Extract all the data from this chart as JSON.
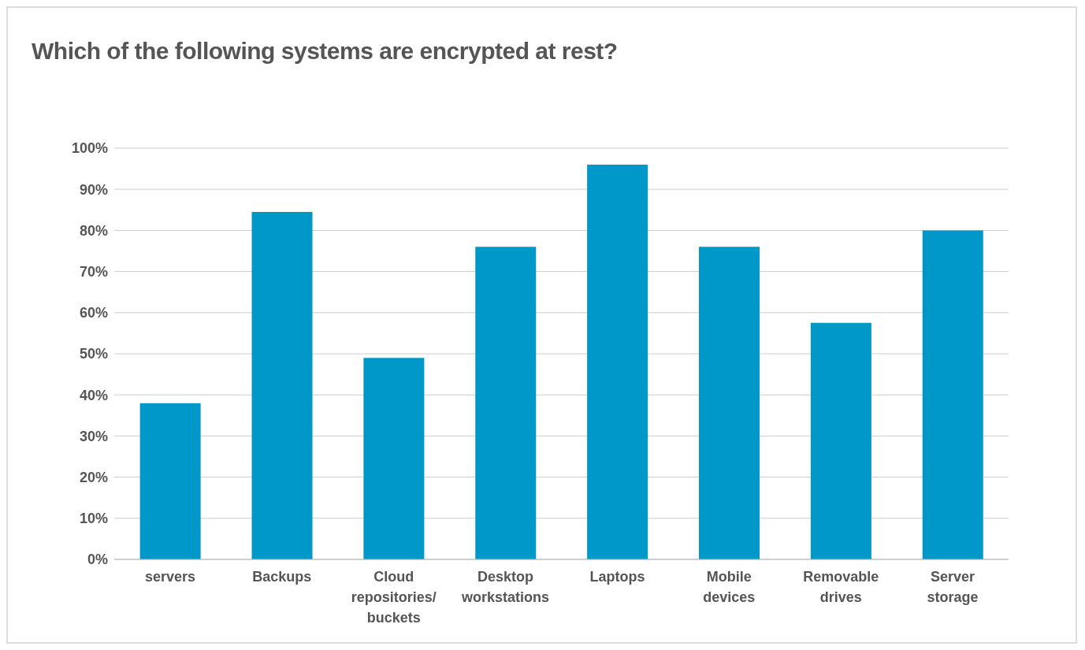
{
  "chart_data": {
    "type": "bar",
    "title": "Which of the following systems are encrypted at rest?",
    "categories": [
      "servers",
      "Backups",
      "Cloud repositories/buckets",
      "Desktop workstations",
      "Laptops",
      "Mobile devices",
      "Removable drives",
      "Server storage"
    ],
    "values": [
      38,
      84.5,
      49,
      76,
      96,
      76,
      57.5,
      80
    ],
    "color": "#0097c9",
    "ylim": [
      0,
      100
    ],
    "yticks": [
      {
        "value": 0,
        "label": "0%"
      },
      {
        "value": 10,
        "label": "10%"
      },
      {
        "value": 20,
        "label": "20%"
      },
      {
        "value": 30,
        "label": "30%"
      },
      {
        "value": 40,
        "label": "40%"
      },
      {
        "value": 50,
        "label": "50%"
      },
      {
        "value": 60,
        "label": "60%"
      },
      {
        "value": 70,
        "label": "70%"
      },
      {
        "value": 80,
        "label": "80%"
      },
      {
        "value": 90,
        "label": "90%"
      },
      {
        "value": 100,
        "label": "100%"
      }
    ],
    "grid": "y"
  }
}
